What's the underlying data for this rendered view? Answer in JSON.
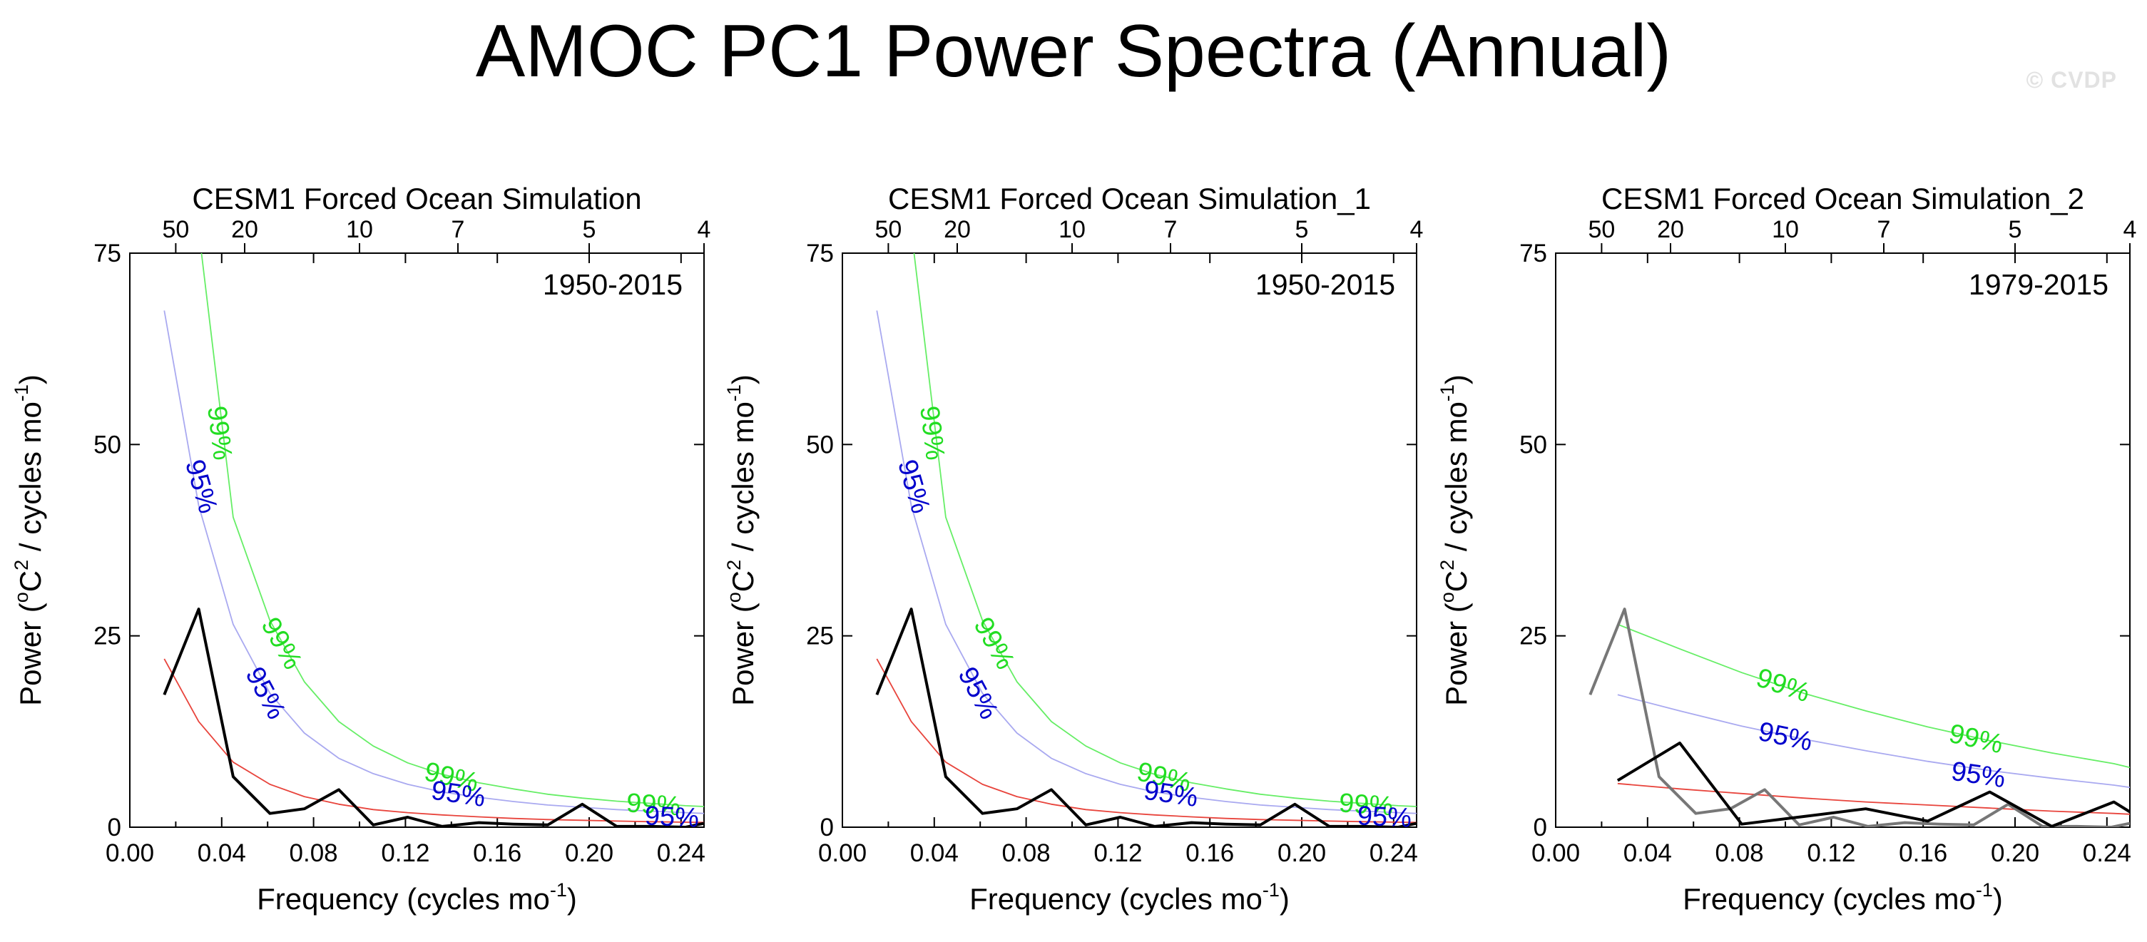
{
  "figure": {
    "title": "AMOC PC1 Power Spectra (Annual)",
    "watermark": "© CVDP"
  },
  "colors": {
    "spectrum": "#000000",
    "spectrum_secondary": "#777777",
    "red_noise": "#e8443c",
    "conf95": "#a9a9f0",
    "conf99": "#66ee66",
    "conf95_label": "#0000cc",
    "conf99_label": "#22dd22"
  },
  "chart_data": [
    {
      "type": "line",
      "title": "CESM1 Forced Ocean Simulation",
      "period_label": "1950-2015",
      "xlabel": "Frequency (cycles mo",
      "xlabel_sup": "-1",
      "ylabel_pre": "Power (",
      "ylabel_o": "o",
      "ylabel_c": "C",
      "ylabel_two": "2",
      "ylabel_mid": " / cycles mo",
      "ylabel_sup": "-1",
      "ylabel_end": ")",
      "xlim": [
        0,
        0.25
      ],
      "ylim": [
        0,
        75
      ],
      "x_ticks": [
        "0.00",
        "0.04",
        "0.08",
        "0.12",
        "0.16",
        "0.20",
        "0.24"
      ],
      "y_ticks": [
        "0",
        "25",
        "50",
        "75"
      ],
      "period_ticks": [
        {
          "label": "50",
          "period": 50
        },
        {
          "label": "20",
          "period": 20
        },
        {
          "label": "10",
          "period": 10
        },
        {
          "label": "7",
          "period": 7
        },
        {
          "label": "5",
          "period": 5
        },
        {
          "label": "4",
          "period": 4
        }
      ],
      "series": [
        {
          "role": "spectrum",
          "x": [
            0.015,
            0.03,
            0.045,
            0.061,
            0.076,
            0.091,
            0.106,
            0.121,
            0.136,
            0.152,
            0.167,
            0.182,
            0.197,
            0.212,
            0.227,
            0.242,
            0.25
          ],
          "values": [
            17.3,
            28.5,
            6.6,
            1.8,
            2.4,
            4.9,
            0.3,
            1.3,
            0.1,
            0.6,
            0.4,
            0.3,
            3.0,
            0.1,
            0.1,
            0.0,
            0.5
          ]
        },
        {
          "role": "red_noise",
          "x": [
            0.015,
            0.03,
            0.045,
            0.061,
            0.076,
            0.091,
            0.106,
            0.121,
            0.136,
            0.152,
            0.167,
            0.182,
            0.197,
            0.212,
            0.227,
            0.242,
            0.25
          ],
          "values": [
            22.0,
            13.8,
            8.5,
            5.6,
            4.0,
            3.0,
            2.3,
            1.9,
            1.6,
            1.35,
            1.15,
            1.0,
            0.9,
            0.8,
            0.72,
            0.65,
            0.62
          ]
        },
        {
          "role": "conf95",
          "x": [
            0.015,
            0.03,
            0.045,
            0.061,
            0.076,
            0.091,
            0.106,
            0.121,
            0.136,
            0.152,
            0.167,
            0.182,
            0.197,
            0.212,
            0.227,
            0.242,
            0.25
          ],
          "values": [
            67.5,
            42.0,
            26.5,
            17.5,
            12.3,
            9.0,
            7.0,
            5.6,
            4.6,
            3.9,
            3.35,
            2.9,
            2.6,
            2.3,
            2.1,
            1.9,
            1.8
          ]
        },
        {
          "role": "conf99",
          "x": [
            0.03,
            0.045,
            0.061,
            0.076,
            0.091,
            0.106,
            0.121,
            0.136,
            0.152,
            0.167,
            0.182,
            0.197,
            0.212,
            0.227,
            0.242,
            0.25
          ],
          "values": [
            78.0,
            40.5,
            27.0,
            19.0,
            13.8,
            10.6,
            8.4,
            6.9,
            5.8,
            5.0,
            4.3,
            3.8,
            3.4,
            3.1,
            2.8,
            2.7
          ]
        }
      ],
      "annotations": [
        {
          "text": "99%",
          "series": "conf99",
          "x": 0.039,
          "y": 51.5
        },
        {
          "text": "95%",
          "series": "conf95",
          "x": 0.031,
          "y": 44.5
        },
        {
          "text": "99%",
          "series": "conf99",
          "x": 0.066,
          "y": 24.0
        },
        {
          "text": "95%",
          "series": "conf95",
          "x": 0.059,
          "y": 17.5
        },
        {
          "text": "99%",
          "series": "conf99",
          "x": 0.14,
          "y": 6.5
        },
        {
          "text": "95%",
          "series": "conf95",
          "x": 0.143,
          "y": 4.3
        },
        {
          "text": "99%",
          "series": "conf99",
          "x": 0.228,
          "y": 2.9
        },
        {
          "text": "95%",
          "series": "conf95",
          "x": 0.236,
          "y": 1.3
        }
      ]
    },
    {
      "type": "line",
      "title": "CESM1 Forced Ocean Simulation_1",
      "period_label": "1950-2015",
      "xlabel": "Frequency (cycles mo",
      "xlabel_sup": "-1",
      "ylabel_pre": "Power (",
      "ylabel_o": "o",
      "ylabel_c": "C",
      "ylabel_two": "2",
      "ylabel_mid": " / cycles mo",
      "ylabel_sup": "-1",
      "ylabel_end": ")",
      "xlim": [
        0,
        0.25
      ],
      "ylim": [
        0,
        75
      ],
      "x_ticks": [
        "0.00",
        "0.04",
        "0.08",
        "0.12",
        "0.16",
        "0.20",
        "0.24"
      ],
      "y_ticks": [
        "0",
        "25",
        "50",
        "75"
      ],
      "period_ticks": [
        {
          "label": "50",
          "period": 50
        },
        {
          "label": "20",
          "period": 20
        },
        {
          "label": "10",
          "period": 10
        },
        {
          "label": "7",
          "period": 7
        },
        {
          "label": "5",
          "period": 5
        },
        {
          "label": "4",
          "period": 4
        }
      ],
      "series": [
        {
          "role": "spectrum",
          "x": [
            0.015,
            0.03,
            0.045,
            0.061,
            0.076,
            0.091,
            0.106,
            0.121,
            0.136,
            0.152,
            0.167,
            0.182,
            0.197,
            0.212,
            0.227,
            0.242,
            0.25
          ],
          "values": [
            17.3,
            28.5,
            6.6,
            1.8,
            2.4,
            4.9,
            0.3,
            1.3,
            0.1,
            0.6,
            0.4,
            0.3,
            3.0,
            0.1,
            0.1,
            0.0,
            0.5
          ]
        },
        {
          "role": "red_noise",
          "x": [
            0.015,
            0.03,
            0.045,
            0.061,
            0.076,
            0.091,
            0.106,
            0.121,
            0.136,
            0.152,
            0.167,
            0.182,
            0.197,
            0.212,
            0.227,
            0.242,
            0.25
          ],
          "values": [
            22.0,
            13.8,
            8.5,
            5.6,
            4.0,
            3.0,
            2.3,
            1.9,
            1.6,
            1.35,
            1.15,
            1.0,
            0.9,
            0.8,
            0.72,
            0.65,
            0.62
          ]
        },
        {
          "role": "conf95",
          "x": [
            0.015,
            0.03,
            0.045,
            0.061,
            0.076,
            0.091,
            0.106,
            0.121,
            0.136,
            0.152,
            0.167,
            0.182,
            0.197,
            0.212,
            0.227,
            0.242,
            0.25
          ],
          "values": [
            67.5,
            42.0,
            26.5,
            17.5,
            12.3,
            9.0,
            7.0,
            5.6,
            4.6,
            3.9,
            3.35,
            2.9,
            2.6,
            2.3,
            2.1,
            1.9,
            1.8
          ]
        },
        {
          "role": "conf99",
          "x": [
            0.03,
            0.045,
            0.061,
            0.076,
            0.091,
            0.106,
            0.121,
            0.136,
            0.152,
            0.167,
            0.182,
            0.197,
            0.212,
            0.227,
            0.242,
            0.25
          ],
          "values": [
            78.0,
            40.5,
            27.0,
            19.0,
            13.8,
            10.6,
            8.4,
            6.9,
            5.8,
            5.0,
            4.3,
            3.8,
            3.4,
            3.1,
            2.8,
            2.7
          ]
        }
      ],
      "annotations": [
        {
          "text": "99%",
          "series": "conf99",
          "x": 0.039,
          "y": 51.5
        },
        {
          "text": "95%",
          "series": "conf95",
          "x": 0.031,
          "y": 44.5
        },
        {
          "text": "99%",
          "series": "conf99",
          "x": 0.066,
          "y": 24.0
        },
        {
          "text": "95%",
          "series": "conf95",
          "x": 0.059,
          "y": 17.5
        },
        {
          "text": "99%",
          "series": "conf99",
          "x": 0.14,
          "y": 6.5
        },
        {
          "text": "95%",
          "series": "conf95",
          "x": 0.143,
          "y": 4.3
        },
        {
          "text": "99%",
          "series": "conf99",
          "x": 0.228,
          "y": 2.9
        },
        {
          "text": "95%",
          "series": "conf95",
          "x": 0.236,
          "y": 1.3
        }
      ]
    },
    {
      "type": "line",
      "title": "CESM1 Forced Ocean Simulation_2",
      "period_label": "1979-2015",
      "xlabel": "Frequency (cycles mo",
      "xlabel_sup": "-1",
      "ylabel_pre": "Power (",
      "ylabel_o": "o",
      "ylabel_c": "C",
      "ylabel_two": "2",
      "ylabel_mid": " / cycles mo",
      "ylabel_sup": "-1",
      "ylabel_end": ")",
      "xlim": [
        0,
        0.25
      ],
      "ylim": [
        0,
        75
      ],
      "x_ticks": [
        "0.00",
        "0.04",
        "0.08",
        "0.12",
        "0.16",
        "0.20",
        "0.24"
      ],
      "y_ticks": [
        "0",
        "25",
        "50",
        "75"
      ],
      "period_ticks": [
        {
          "label": "50",
          "period": 50
        },
        {
          "label": "20",
          "period": 20
        },
        {
          "label": "10",
          "period": 10
        },
        {
          "label": "7",
          "period": 7
        },
        {
          "label": "5",
          "period": 5
        },
        {
          "label": "4",
          "period": 4
        }
      ],
      "series": [
        {
          "role": "spectrum_secondary",
          "x": [
            0.015,
            0.03,
            0.045,
            0.061,
            0.076,
            0.091,
            0.106,
            0.121,
            0.136,
            0.152,
            0.167,
            0.182,
            0.197,
            0.212,
            0.227,
            0.242,
            0.25
          ],
          "values": [
            17.3,
            28.5,
            6.6,
            1.8,
            2.4,
            4.9,
            0.3,
            1.3,
            0.1,
            0.6,
            0.4,
            0.3,
            3.0,
            0.1,
            0.1,
            0.0,
            0.5
          ]
        },
        {
          "role": "red_noise",
          "x": [
            0.027,
            0.054,
            0.081,
            0.108,
            0.135,
            0.162,
            0.189,
            0.216,
            0.243,
            0.25
          ],
          "values": [
            5.7,
            5.0,
            4.4,
            3.8,
            3.3,
            2.9,
            2.5,
            2.1,
            1.8,
            1.7
          ]
        },
        {
          "role": "conf95",
          "x": [
            0.027,
            0.054,
            0.081,
            0.108,
            0.135,
            0.162,
            0.189,
            0.216,
            0.243,
            0.25
          ],
          "values": [
            17.3,
            15.2,
            13.2,
            11.5,
            10.0,
            8.6,
            7.4,
            6.4,
            5.5,
            5.2
          ]
        },
        {
          "role": "conf99",
          "x": [
            0.027,
            0.054,
            0.081,
            0.108,
            0.135,
            0.162,
            0.189,
            0.216,
            0.243,
            0.25
          ],
          "values": [
            26.5,
            23.3,
            20.2,
            17.5,
            15.2,
            13.1,
            11.3,
            9.7,
            8.3,
            7.8
          ]
        },
        {
          "role": "spectrum",
          "x": [
            0.027,
            0.054,
            0.081,
            0.108,
            0.135,
            0.162,
            0.189,
            0.216,
            0.243,
            0.25
          ],
          "values": [
            6.1,
            11.0,
            0.4,
            1.4,
            2.4,
            0.8,
            4.6,
            0.1,
            3.3,
            2.0
          ]
        }
      ],
      "annotations": [
        {
          "text": "99%",
          "series": "conf99",
          "x": 0.099,
          "y": 18.5
        },
        {
          "text": "95%",
          "series": "conf95",
          "x": 0.1,
          "y": 11.8
        },
        {
          "text": "99%",
          "series": "conf99",
          "x": 0.183,
          "y": 11.5
        },
        {
          "text": "95%",
          "series": "conf95",
          "x": 0.184,
          "y": 6.8
        }
      ]
    }
  ]
}
